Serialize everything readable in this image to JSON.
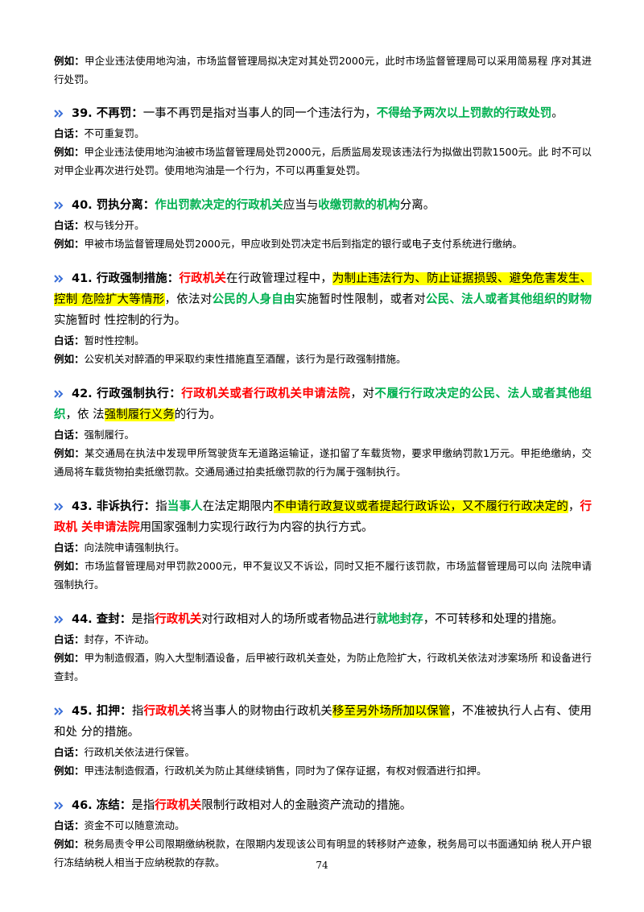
{
  "intro": {
    "label": "例如：",
    "text": "甲企业违法使用地沟油，市场监督管理局拟决定对其处罚2000元，此时市场监督管理局可以采用简易程 序对其进行处罚。"
  },
  "entries": [
    {
      "heading": [
        {
          "text": "39. 不再罚：",
          "bold": true
        },
        {
          "text": "一事不再罚是指对当事人的同一个违法行为，"
        },
        {
          "text": "不得给予两次以上罚款的行政处罚",
          "color": "#00b050"
        },
        {
          "text": "。"
        }
      ],
      "plain_label": "白话：",
      "plain": "不可重复罚。",
      "example_label": "例如：",
      "example": "甲企业违法使用地沟油被市场监督管理局处罚2000元，后质监局发现该违法行为拟做出罚款1500元。此 时不可以对甲企业再次进行处罚。使用地沟油是一个行为，不可以再重复处罚。"
    },
    {
      "heading": [
        {
          "text": "40. 罚执分离：",
          "bold": true
        },
        {
          "text": "作出罚款决定的行政机关",
          "color": "#00b050"
        },
        {
          "text": "应当与"
        },
        {
          "text": "收缴罚款的机构",
          "color": "#00b050"
        },
        {
          "text": "分离。"
        }
      ],
      "plain_label": "白话：",
      "plain": "权与钱分开。",
      "example_label": "例如：",
      "example": "甲被市场监督管理局处罚2000元，甲应收到处罚决定书后到指定的银行或电子支付系统进行缴纳。"
    },
    {
      "heading": [
        {
          "text": "41. 行政强制措施：",
          "bold": true
        },
        {
          "text": "行政机关",
          "color": "#ff0000"
        },
        {
          "text": "在行政管理过程中，"
        },
        {
          "text": "为制止违法行为、防止证据损毁、避免危害发生、控制 危险扩大等情形",
          "highlight": "#ffff00"
        },
        {
          "text": "，依法对"
        },
        {
          "text": "公民的人身自由",
          "color": "#00b050"
        },
        {
          "text": "实施暂时性限制，或者对"
        },
        {
          "text": "公民、法人或者其他组织的财物",
          "color": "#00b050"
        },
        {
          "text": "实施暂时 性控制的行为。"
        }
      ],
      "plain_label": "白话：",
      "plain": "暂时性控制。",
      "example_label": "例如：",
      "example": "公安机关对醉酒的甲采取约束性措施直至酒醒，该行为是行政强制措施。"
    },
    {
      "heading": [
        {
          "text": "42. 行政强制执行：",
          "bold": true
        },
        {
          "text": "行政机关或者行政机关申请法院",
          "color": "#ff0000"
        },
        {
          "text": "，对"
        },
        {
          "text": "不履行行政决定的公民、法人或者其他组织",
          "color": "#00b050"
        },
        {
          "text": "，依 法"
        },
        {
          "text": "强制履行义务",
          "highlight": "#ffff00"
        },
        {
          "text": "的行为。"
        }
      ],
      "plain_label": "白话：",
      "plain": "强制履行。",
      "example_label": "例如：",
      "example": "某交通局在执法中发现甲所驾驶货车无道路运输证，遂扣留了车载货物，要求甲缴纳罚款1万元。甲拒绝缴纳，交通局将车载货物拍卖抵缴罚款。交通局通过拍卖抵缴罚款的行为属于强制执行。"
    },
    {
      "heading": [
        {
          "text": "43. 非诉执行：",
          "bold": true
        },
        {
          "text": "指"
        },
        {
          "text": "当事人",
          "color": "#00b050"
        },
        {
          "text": "在法定期限内"
        },
        {
          "text": "不申请行政复议或者提起行政诉讼，又不履行行政决定的",
          "highlight": "#ffff00"
        },
        {
          "text": "，"
        },
        {
          "text": "行政机 关申请法院",
          "color": "#ff0000"
        },
        {
          "text": "用国家强制力实现行政行为内容的执行方式。"
        }
      ],
      "plain_label": "白话：",
      "plain": "向法院申请强制执行。",
      "example_label": "例如：",
      "example": "市场监督管理局对甲罚款2000元，甲不复议又不诉讼，同时又拒不履行该罚款，市场监督管理局可以向 法院申请强制执行。"
    },
    {
      "heading": [
        {
          "text": "44. 查封：",
          "bold": true
        },
        {
          "text": "是指"
        },
        {
          "text": "行政机关",
          "color": "#ff0000"
        },
        {
          "text": "对行政相对人的场所或者物品进行"
        },
        {
          "text": "就地封存",
          "color": "#00b050"
        },
        {
          "text": "，不可转移和处理的措施。"
        }
      ],
      "plain_label": "白话：",
      "plain": "封存，不许动。",
      "example_label": "例如：",
      "example": "甲为制造假酒，购入大型制酒设备，后甲被行政机关查处，为防止危险扩大，行政机关依法对涉案场所 和设备进行查封。"
    },
    {
      "heading": [
        {
          "text": "45. 扣押：",
          "bold": true
        },
        {
          "text": "指"
        },
        {
          "text": "行政机关",
          "color": "#ff0000"
        },
        {
          "text": "将当事人的财物由行政机关"
        },
        {
          "text": "移至另外场所加以保管",
          "highlight": "#ffff00"
        },
        {
          "text": "，不准被执行人占有、使用和处 分的措施。"
        }
      ],
      "plain_label": "白话：",
      "plain": "行政机关依法进行保管。",
      "example_label": "例如：",
      "example": "甲违法制造假酒，行政机关为防止其继续销售，同时为了保存证据，有权对假酒进行扣押。"
    },
    {
      "heading": [
        {
          "text": "46. 冻结：",
          "bold": true
        },
        {
          "text": "是指"
        },
        {
          "text": "行政机关",
          "color": "#ff0000"
        },
        {
          "text": "限制行政相对人的金融资产流动的措施。"
        }
      ],
      "plain_label": "白话：",
      "plain": "资金不可以随意流动。",
      "example_label": "例如：",
      "example": "税务局责令甲公司限期缴纳税款，在限期内发现该公司有明显的转移财产迹象，税务局可以书面通知纳 税人开户银行冻结纳税人相当于应纳税款的存款。"
    }
  ],
  "page_number": "74"
}
